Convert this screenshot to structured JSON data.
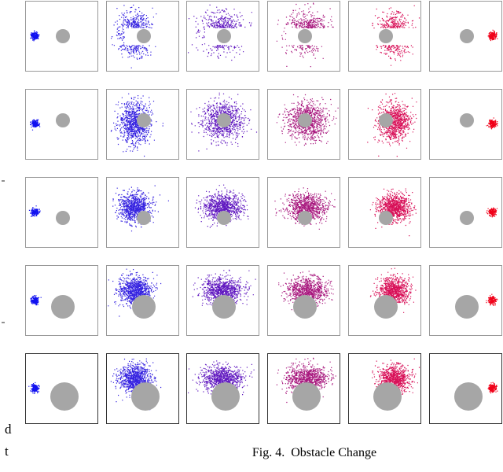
{
  "caption": "Fig. 4.  Obstacle Change",
  "margin_text": [
    "d",
    "t"
  ]
}
